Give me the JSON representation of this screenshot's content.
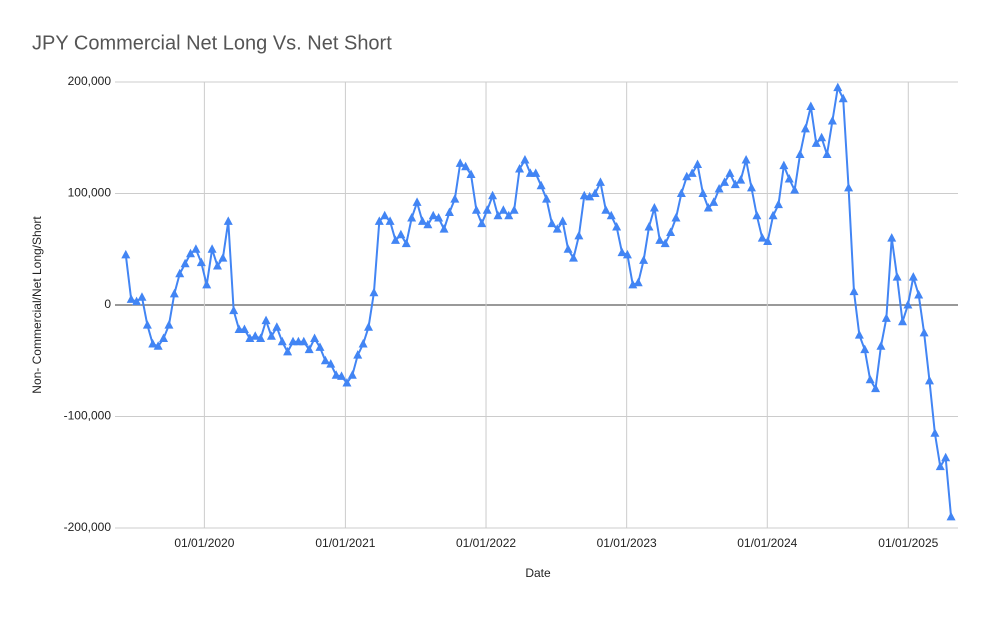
{
  "chart_data": {
    "type": "line",
    "title": "JPY Commercial Net Long Vs. Net Short",
    "x_label": "Date",
    "y_label": "Non- Commercial/Net Long/Short",
    "color": "#4285f4",
    "grid": true,
    "xlim": [
      "2019-05-14",
      "2025-05-10"
    ],
    "xticks": [
      {
        "value": "2020-01-01",
        "label": "01/01/2020"
      },
      {
        "value": "2021-01-01",
        "label": "01/01/2021"
      },
      {
        "value": "2022-01-01",
        "label": "01/01/2022"
      },
      {
        "value": "2023-01-01",
        "label": "01/01/2023"
      },
      {
        "value": "2024-01-01",
        "label": "01/01/2024"
      },
      {
        "value": "2025-01-01",
        "label": "01/01/2025"
      }
    ],
    "ylim": [
      -200000,
      200000
    ],
    "yticks": [
      {
        "value": -200000,
        "label": "-200,000"
      },
      {
        "value": -100000,
        "label": "-100,000"
      },
      0,
      {
        "value": 100000,
        "label": "100,000"
      },
      {
        "value": 200000,
        "label": "200,000"
      }
    ],
    "x": [
      "2019-06-11",
      "2019-06-25",
      "2019-07-09",
      "2019-07-23",
      "2019-08-06",
      "2019-08-20",
      "2019-09-03",
      "2019-09-17",
      "2019-10-01",
      "2019-10-15",
      "2019-10-29",
      "2019-11-12",
      "2019-11-26",
      "2019-12-10",
      "2019-12-24",
      "2020-01-07",
      "2020-01-21",
      "2020-02-04",
      "2020-02-18",
      "2020-03-03",
      "2020-03-17",
      "2020-03-31",
      "2020-04-14",
      "2020-04-28",
      "2020-05-12",
      "2020-05-26",
      "2020-06-09",
      "2020-06-23",
      "2020-07-07",
      "2020-07-21",
      "2020-08-04",
      "2020-08-18",
      "2020-09-01",
      "2020-09-15",
      "2020-09-29",
      "2020-10-13",
      "2020-10-27",
      "2020-11-10",
      "2020-11-24",
      "2020-12-08",
      "2020-12-22",
      "2021-01-05",
      "2021-01-19",
      "2021-02-02",
      "2021-02-16",
      "2021-03-02",
      "2021-03-16",
      "2021-03-30",
      "2021-04-13",
      "2021-04-27",
      "2021-05-11",
      "2021-05-25",
      "2021-06-08",
      "2021-06-22",
      "2021-07-06",
      "2021-07-20",
      "2021-08-03",
      "2021-08-17",
      "2021-08-31",
      "2021-09-14",
      "2021-09-28",
      "2021-10-12",
      "2021-10-26",
      "2021-11-09",
      "2021-11-23",
      "2021-12-07",
      "2021-12-21",
      "2022-01-04",
      "2022-01-18",
      "2022-02-01",
      "2022-02-15",
      "2022-03-01",
      "2022-03-15",
      "2022-03-29",
      "2022-04-12",
      "2022-04-26",
      "2022-05-10",
      "2022-05-24",
      "2022-06-07",
      "2022-06-21",
      "2022-07-05",
      "2022-07-19",
      "2022-08-02",
      "2022-08-16",
      "2022-08-30",
      "2022-09-13",
      "2022-09-27",
      "2022-10-11",
      "2022-10-25",
      "2022-11-08",
      "2022-11-22",
      "2022-12-06",
      "2022-12-20",
      "2023-01-03",
      "2023-01-17",
      "2023-01-31",
      "2023-02-14",
      "2023-02-28",
      "2023-03-14",
      "2023-03-28",
      "2023-04-11",
      "2023-04-25",
      "2023-05-09",
      "2023-05-23",
      "2023-06-06",
      "2023-06-20",
      "2023-07-04",
      "2023-07-18",
      "2023-08-01",
      "2023-08-15",
      "2023-08-29",
      "2023-09-12",
      "2023-09-26",
      "2023-10-10",
      "2023-10-24",
      "2023-11-07",
      "2023-11-21",
      "2023-12-05",
      "2023-12-19",
      "2024-01-02",
      "2024-01-16",
      "2024-01-30",
      "2024-02-13",
      "2024-02-27",
      "2024-03-12",
      "2024-03-26",
      "2024-04-09",
      "2024-04-23",
      "2024-05-07",
      "2024-05-21",
      "2024-06-04",
      "2024-06-18",
      "2024-07-02",
      "2024-07-16",
      "2024-07-30",
      "2024-08-13",
      "2024-08-27",
      "2024-09-10",
      "2024-09-24",
      "2024-10-08",
      "2024-10-22",
      "2024-11-05",
      "2024-11-19",
      "2024-12-03",
      "2024-12-17",
      "2024-12-31",
      "2025-01-14",
      "2025-01-28",
      "2025-02-11",
      "2025-02-25",
      "2025-03-11",
      "2025-03-25",
      "2025-04-08",
      "2025-04-22"
    ],
    "values": [
      45000,
      5000,
      3000,
      7000,
      -18000,
      -35000,
      -37000,
      -30000,
      -18000,
      10000,
      28000,
      37000,
      46000,
      50000,
      38000,
      18000,
      50000,
      35000,
      42000,
      75000,
      -5000,
      -22000,
      -22000,
      -30000,
      -28000,
      -30000,
      -14000,
      -28000,
      -20000,
      -33000,
      -42000,
      -33000,
      -33000,
      -33000,
      -40000,
      -30000,
      -38000,
      -50000,
      -53000,
      -63000,
      -64000,
      -70000,
      -63000,
      -45000,
      -35000,
      -20000,
      11000,
      75000,
      80000,
      75000,
      58000,
      63000,
      55000,
      78000,
      92000,
      75000,
      72000,
      80000,
      78000,
      68000,
      83000,
      95000,
      127000,
      124000,
      117000,
      85000,
      73000,
      85000,
      98000,
      80000,
      85000,
      80000,
      85000,
      122000,
      130000,
      118000,
      118000,
      107000,
      95000,
      73000,
      68000,
      75000,
      50000,
      42000,
      62000,
      98000,
      97000,
      100000,
      110000,
      85000,
      80000,
      70000,
      47000,
      45000,
      18000,
      20000,
      40000,
      70000,
      87000,
      58000,
      55000,
      65000,
      78000,
      100000,
      115000,
      118000,
      126000,
      100000,
      87000,
      92000,
      104000,
      110000,
      118000,
      108000,
      112000,
      130000,
      105000,
      80000,
      60000,
      57000,
      80000,
      90000,
      125000,
      113000,
      103000,
      135000,
      158000,
      178000,
      145000,
      150000,
      135000,
      165000,
      195000,
      185000,
      105000,
      12000,
      -27000,
      -40000,
      -67000,
      -75000,
      -37000,
      -12000,
      60000,
      25000,
      -15000,
      0,
      25000,
      9000,
      -25000,
      -68000,
      -115000,
      -145000,
      -137000,
      -190000
    ]
  }
}
